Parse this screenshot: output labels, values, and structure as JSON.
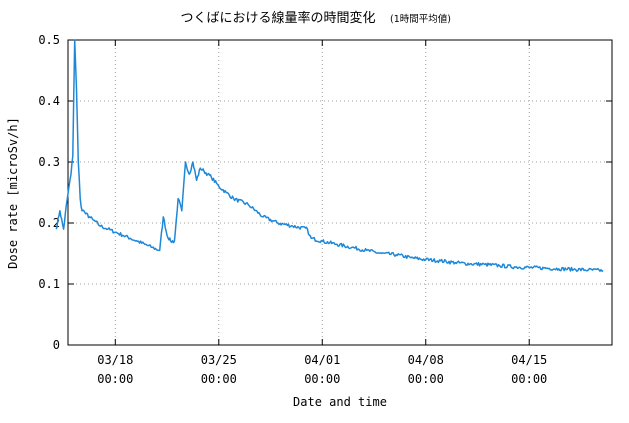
{
  "chart_data": {
    "type": "line",
    "title": "つくばにおける線量率の時間変化",
    "subtitle": "(1時間平均値)",
    "xlabel": "Date and time",
    "ylabel": "Dose rate [microSv/h]",
    "ylim": [
      0,
      0.5
    ],
    "yticks": [
      "0",
      "0.1",
      "0.2",
      "0.3",
      "0.4",
      "0.5"
    ],
    "xticks": [
      {
        "day": 4,
        "line1": "03/18",
        "line2": "00:00"
      },
      {
        "day": 11,
        "line1": "03/25",
        "line2": "00:00"
      },
      {
        "day": 18,
        "line1": "04/01",
        "line2": "00:00"
      },
      {
        "day": 25,
        "line1": "04/08",
        "line2": "00:00"
      },
      {
        "day": 32,
        "line1": "04/15",
        "line2": "00:00"
      }
    ],
    "grid": true,
    "line_color": "#1e88d8",
    "series": [
      {
        "x": [
          "03/14 00:00",
          "03/14 06:00",
          "03/14 12:00",
          "03/14 18:00",
          "03/15 00:00",
          "03/15 03:00",
          "03/15 06:00",
          "03/15 09:00",
          "03/15 12:00",
          "03/15 15:00",
          "03/15 18:00",
          "03/15 21:00",
          "03/16 00:00",
          "03/16 06:00",
          "03/16 12:00",
          "03/17 00:00",
          "03/17 12:00",
          "03/18 00:00",
          "03/18 12:00",
          "03/19 00:00",
          "03/19 12:00",
          "03/20 00:00",
          "03/20 12:00",
          "03/21 00:00",
          "03/21 06:00",
          "03/21 12:00",
          "03/21 18:00",
          "03/22 00:00",
          "03/22 06:00",
          "03/22 12:00",
          "03/22 18:00",
          "03/23 00:00",
          "03/23 06:00",
          "03/23 12:00",
          "03/23 18:00",
          "03/24 00:00",
          "03/24 06:00",
          "03/24 12:00",
          "03/25 00:00",
          "03/25 12:00",
          "03/26 00:00",
          "03/27 00:00",
          "03/28 00:00",
          "03/29 00:00",
          "03/30 00:00",
          "03/31 00:00",
          "03/31 03:00",
          "03/31 06:00",
          "04/01 00:00",
          "04/02 00:00",
          "04/03 00:00",
          "04/04 00:00",
          "04/05 00:00",
          "04/06 00:00",
          "04/07 00:00",
          "04/08 00:00",
          "04/09 00:00",
          "04/10 00:00",
          "04/11 00:00",
          "04/12 00:00",
          "04/13 00:00",
          "04/14 00:00",
          "04/15 00:00",
          "04/16 00:00",
          "04/17 00:00",
          "04/18 00:00",
          "04/19 00:00",
          "04/20 00:00"
        ],
        "y": [
          0.19,
          0.22,
          0.19,
          0.24,
          0.28,
          0.31,
          0.5,
          0.42,
          0.3,
          0.24,
          0.22,
          0.22,
          0.215,
          0.21,
          0.205,
          0.195,
          0.19,
          0.185,
          0.18,
          0.175,
          0.17,
          0.165,
          0.16,
          0.155,
          0.21,
          0.18,
          0.17,
          0.17,
          0.24,
          0.22,
          0.3,
          0.28,
          0.3,
          0.27,
          0.29,
          0.285,
          0.28,
          0.275,
          0.26,
          0.25,
          0.24,
          0.23,
          0.21,
          0.2,
          0.195,
          0.19,
          0.18,
          0.175,
          0.17,
          0.165,
          0.16,
          0.155,
          0.15,
          0.148,
          0.143,
          0.14,
          0.138,
          0.135,
          0.133,
          0.132,
          0.13,
          0.128,
          0.127,
          0.126,
          0.125,
          0.124,
          0.123,
          0.122
        ]
      }
    ]
  }
}
